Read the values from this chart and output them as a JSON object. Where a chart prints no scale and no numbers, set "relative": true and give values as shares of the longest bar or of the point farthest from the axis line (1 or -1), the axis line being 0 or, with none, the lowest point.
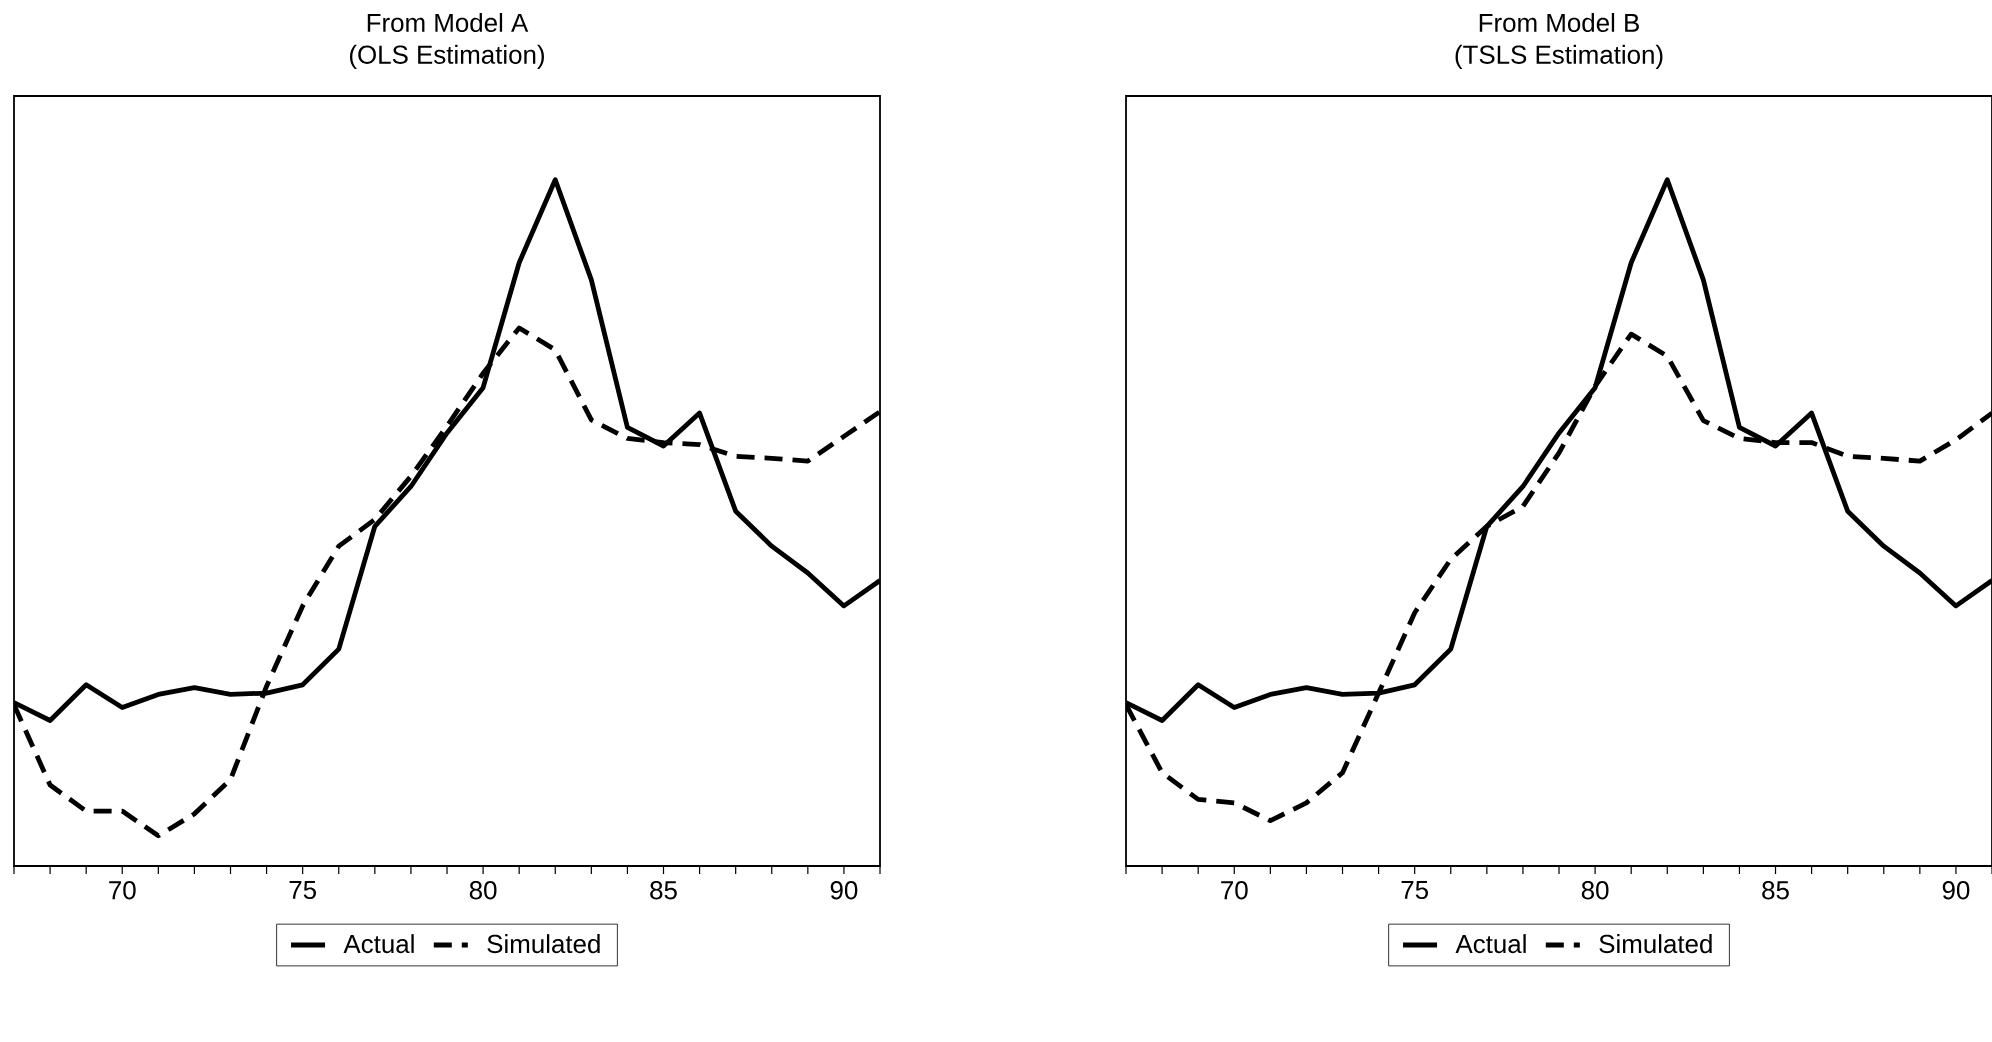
{
  "chart_data": [
    {
      "type": "line",
      "title": "From Model A",
      "subtitle": "(OLS Estimation)",
      "relative": true,
      "legend": "bottom",
      "xlim": [
        67,
        91
      ],
      "xticks": [
        {
          "value": 67,
          "label": null
        },
        {
          "value": 68,
          "label": null
        },
        {
          "value": 69,
          "label": null
        },
        70,
        {
          "value": 71,
          "label": null
        },
        {
          "value": 72,
          "label": null
        },
        {
          "value": 73,
          "label": null
        },
        {
          "value": 74,
          "label": null
        },
        75,
        {
          "value": 76,
          "label": null
        },
        {
          "value": 77,
          "label": null
        },
        {
          "value": 78,
          "label": null
        },
        {
          "value": 79,
          "label": null
        },
        80,
        {
          "value": 81,
          "label": null
        },
        {
          "value": 82,
          "label": null
        },
        {
          "value": 83,
          "label": null
        },
        {
          "value": 84,
          "label": null
        },
        85,
        {
          "value": 86,
          "label": null
        },
        {
          "value": 87,
          "label": null
        },
        {
          "value": 88,
          "label": null
        },
        {
          "value": 89,
          "label": null
        },
        90,
        {
          "value": 91,
          "label": null
        }
      ],
      "x": [
        67,
        68,
        69,
        70,
        71,
        72,
        73,
        74,
        75,
        76,
        77,
        78,
        79,
        80,
        81,
        82,
        83,
        84,
        85,
        86,
        87,
        88,
        89,
        90,
        91
      ],
      "series": [
        {
          "name": "Actual",
          "color": "#000000",
          "line_style": "solid",
          "values": [
            0.238,
            0.212,
            0.264,
            0.231,
            0.25,
            0.26,
            0.25,
            0.252,
            0.264,
            0.316,
            0.495,
            0.553,
            0.631,
            0.697,
            0.879,
            1.0,
            0.854,
            0.639,
            0.612,
            0.66,
            0.517,
            0.466,
            0.427,
            0.379,
            0.416
          ]
        },
        {
          "name": "Simulated",
          "color": "#000000",
          "line_style": "dashed",
          "values": [
            0.235,
            0.118,
            0.08,
            0.08,
            0.044,
            0.076,
            0.126,
            0.262,
            0.379,
            0.466,
            0.505,
            0.568,
            0.641,
            0.718,
            0.784,
            0.752,
            0.65,
            0.623,
            0.617,
            0.614,
            0.597,
            0.594,
            0.59,
            0.626,
            0.662
          ]
        }
      ]
    },
    {
      "type": "line",
      "title": "From Model B",
      "subtitle": "(TSLS Estimation)",
      "relative": true,
      "legend": "bottom",
      "xlim": [
        67,
        91
      ],
      "xticks": [
        {
          "value": 67,
          "label": null
        },
        {
          "value": 68,
          "label": null
        },
        {
          "value": 69,
          "label": null
        },
        70,
        {
          "value": 71,
          "label": null
        },
        {
          "value": 72,
          "label": null
        },
        {
          "value": 73,
          "label": null
        },
        {
          "value": 74,
          "label": null
        },
        75,
        {
          "value": 76,
          "label": null
        },
        {
          "value": 77,
          "label": null
        },
        {
          "value": 78,
          "label": null
        },
        {
          "value": 79,
          "label": null
        },
        80,
        {
          "value": 81,
          "label": null
        },
        {
          "value": 82,
          "label": null
        },
        {
          "value": 83,
          "label": null
        },
        {
          "value": 84,
          "label": null
        },
        85,
        {
          "value": 86,
          "label": null
        },
        {
          "value": 87,
          "label": null
        },
        {
          "value": 88,
          "label": null
        },
        {
          "value": 89,
          "label": null
        },
        90,
        {
          "value": 91,
          "label": null
        }
      ],
      "x": [
        67,
        68,
        69,
        70,
        71,
        72,
        73,
        74,
        75,
        76,
        77,
        78,
        79,
        80,
        81,
        82,
        83,
        84,
        85,
        86,
        87,
        88,
        89,
        90,
        91
      ],
      "series": [
        {
          "name": "Actual",
          "color": "#000000",
          "line_style": "solid",
          "values": [
            0.238,
            0.212,
            0.264,
            0.231,
            0.25,
            0.26,
            0.25,
            0.252,
            0.264,
            0.316,
            0.495,
            0.553,
            0.631,
            0.697,
            0.879,
            1.0,
            0.854,
            0.639,
            0.612,
            0.66,
            0.517,
            0.466,
            0.427,
            0.379,
            0.416
          ]
        },
        {
          "name": "Simulated",
          "color": "#000000",
          "line_style": "dashed",
          "values": [
            0.235,
            0.136,
            0.097,
            0.092,
            0.066,
            0.092,
            0.136,
            0.252,
            0.369,
            0.447,
            0.495,
            0.524,
            0.602,
            0.699,
            0.775,
            0.743,
            0.649,
            0.623,
            0.617,
            0.617,
            0.597,
            0.594,
            0.59,
            0.621,
            0.66
          ]
        }
      ]
    }
  ]
}
